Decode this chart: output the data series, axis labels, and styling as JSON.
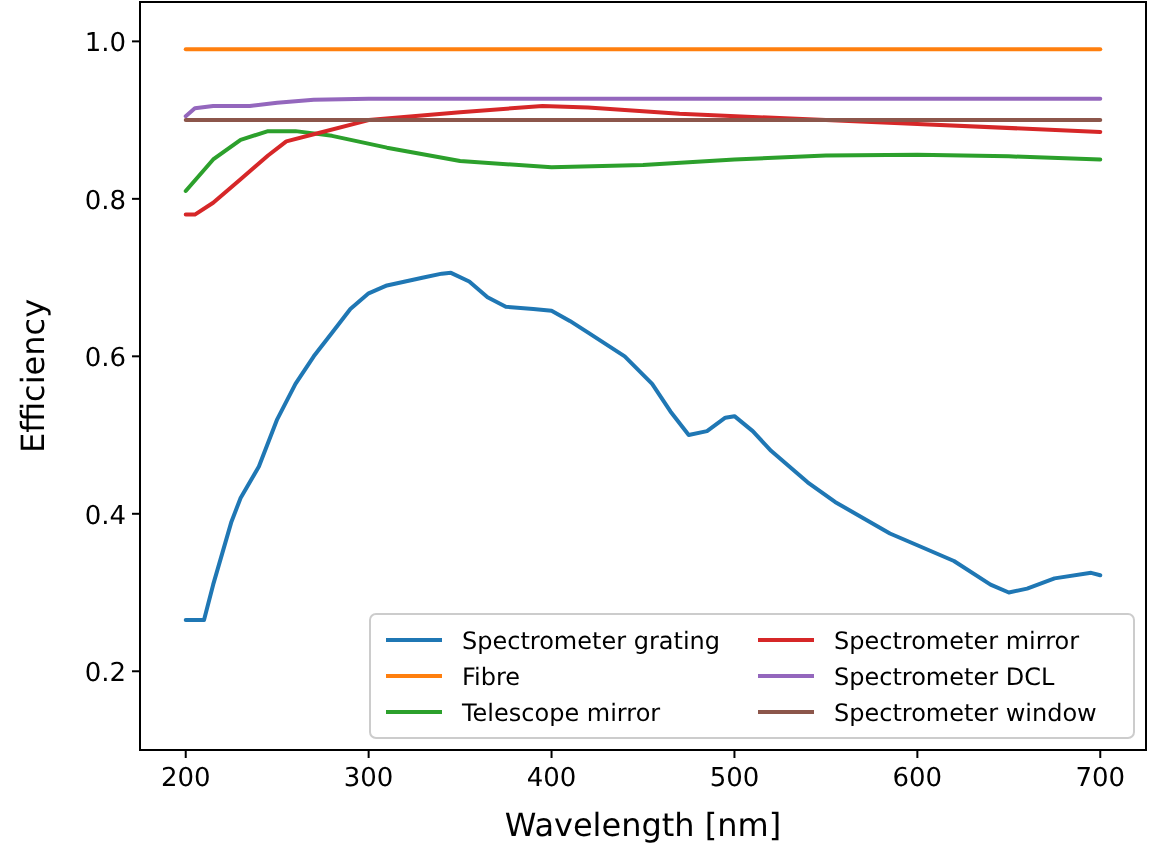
{
  "chart_data": {
    "type": "line",
    "xlabel": "Wavelength [nm]",
    "ylabel": "Efficiency",
    "xlim": [
      175,
      725
    ],
    "ylim": [
      0.1,
      1.05
    ],
    "xticks": [
      200,
      300,
      400,
      500,
      600,
      700
    ],
    "yticks": [
      0.2,
      0.4,
      0.6,
      0.8,
      {
        "value": 1.0,
        "label": "1.0"
      }
    ],
    "grid": false,
    "legend": "bottom right",
    "line_style": "solid",
    "series": [
      {
        "name": "Spectrometer grating",
        "color": "#1f77b4",
        "x": [
          200,
          210,
          215,
          220,
          225,
          230,
          240,
          250,
          260,
          270,
          280,
          290,
          300,
          310,
          320,
          330,
          340,
          345,
          355,
          365,
          375,
          390,
          400,
          410,
          420,
          440,
          455,
          465,
          475,
          485,
          495,
          500,
          510,
          520,
          540,
          555,
          570,
          585,
          600,
          620,
          640,
          650,
          660,
          675,
          695,
          700
        ],
        "values": [
          0.265,
          0.265,
          0.31,
          0.35,
          0.39,
          0.42,
          0.46,
          0.52,
          0.565,
          0.6,
          0.63,
          0.66,
          0.68,
          0.69,
          0.695,
          0.7,
          0.705,
          0.706,
          0.695,
          0.675,
          0.663,
          0.66,
          0.658,
          0.645,
          0.63,
          0.6,
          0.565,
          0.53,
          0.5,
          0.505,
          0.522,
          0.524,
          0.505,
          0.48,
          0.44,
          0.415,
          0.395,
          0.375,
          0.36,
          0.34,
          0.31,
          0.3,
          0.305,
          0.318,
          0.325,
          0.322
        ]
      },
      {
        "name": "Fibre",
        "color": "#ff7f0e",
        "x": [
          200,
          700
        ],
        "values": [
          0.99,
          0.99
        ]
      },
      {
        "name": "Telescope mirror",
        "color": "#2ca02c",
        "x": [
          200,
          215,
          230,
          245,
          260,
          280,
          310,
          350,
          400,
          450,
          500,
          550,
          600,
          650,
          700
        ],
        "values": [
          0.81,
          0.85,
          0.875,
          0.886,
          0.886,
          0.88,
          0.865,
          0.848,
          0.84,
          0.843,
          0.85,
          0.855,
          0.856,
          0.854,
          0.85
        ]
      },
      {
        "name": "Spectrometer mirror",
        "color": "#d62728",
        "x": [
          200,
          205,
          215,
          230,
          245,
          255,
          270,
          300,
          350,
          395,
          420,
          470,
          550,
          600,
          700
        ],
        "values": [
          0.78,
          0.78,
          0.795,
          0.825,
          0.855,
          0.873,
          0.882,
          0.9,
          0.91,
          0.918,
          0.916,
          0.908,
          0.9,
          0.895,
          0.885
        ]
      },
      {
        "name": "Spectrometer DCL",
        "color": "#9467bd",
        "x": [
          200,
          205,
          215,
          235,
          250,
          270,
          300,
          700
        ],
        "values": [
          0.905,
          0.915,
          0.918,
          0.918,
          0.922,
          0.926,
          0.927,
          0.927
        ]
      },
      {
        "name": "Spectrometer window",
        "color": "#8c564b",
        "x": [
          200,
          700
        ],
        "values": [
          0.9,
          0.9
        ]
      }
    ]
  }
}
